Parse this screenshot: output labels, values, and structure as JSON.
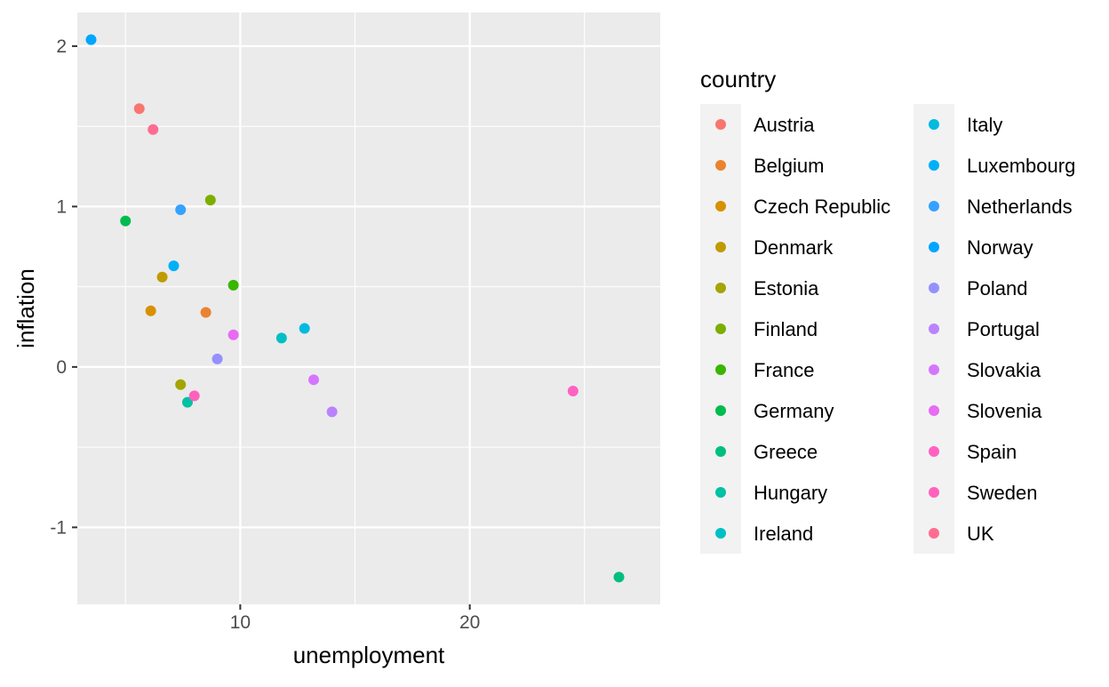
{
  "chart_data": {
    "type": "scatter",
    "title": "",
    "xlabel": "unemployment",
    "ylabel": "inflation",
    "xlim": [
      2.9,
      28.3
    ],
    "ylim": [
      -1.48,
      2.21
    ],
    "x_ticks": [
      10,
      20
    ],
    "y_ticks": [
      -1,
      0,
      1,
      2
    ],
    "x_tick_labels": [
      "10",
      "20"
    ],
    "y_tick_labels": [
      "-1",
      "0",
      "1",
      "2"
    ],
    "grid": true,
    "legend": {
      "title": "country",
      "placement": "right",
      "columns": 2
    },
    "series": [
      {
        "name": "Austria",
        "color": "#F8766D",
        "points": [
          [
            5.6,
            1.61
          ]
        ]
      },
      {
        "name": "Belgium",
        "color": "#EA8331",
        "points": [
          [
            8.5,
            0.34
          ]
        ]
      },
      {
        "name": "Czech Republic",
        "color": "#D89000",
        "points": [
          [
            6.1,
            0.35
          ]
        ]
      },
      {
        "name": "Denmark",
        "color": "#C09B00",
        "points": [
          [
            6.6,
            0.56
          ]
        ]
      },
      {
        "name": "Estonia",
        "color": "#A3A500",
        "points": [
          [
            7.4,
            -0.11
          ]
        ]
      },
      {
        "name": "Finland",
        "color": "#7CAE00",
        "points": [
          [
            8.7,
            1.04
          ]
        ]
      },
      {
        "name": "France",
        "color": "#39B600",
        "points": [
          [
            9.7,
            0.51
          ]
        ]
      },
      {
        "name": "Germany",
        "color": "#00BB4E",
        "points": [
          [
            5.0,
            0.91
          ]
        ]
      },
      {
        "name": "Greece",
        "color": "#00BF7D",
        "points": [
          [
            26.5,
            -1.31
          ]
        ]
      },
      {
        "name": "Hungary",
        "color": "#00C1A3",
        "points": [
          [
            7.7,
            -0.22
          ]
        ]
      },
      {
        "name": "Ireland",
        "color": "#00BFC4",
        "points": [
          [
            11.8,
            0.18
          ]
        ]
      },
      {
        "name": "Italy",
        "color": "#00BAE0",
        "points": [
          [
            12.8,
            0.24
          ]
        ]
      },
      {
        "name": "Luxembourg",
        "color": "#00B0F6",
        "points": [
          [
            7.1,
            0.63
          ]
        ]
      },
      {
        "name": "Netherlands",
        "color": "#35A2FF",
        "points": [
          [
            7.4,
            0.98
          ]
        ]
      },
      {
        "name": "Norway",
        "color": "#00A5FF",
        "points": [
          [
            3.5,
            2.04
          ]
        ]
      },
      {
        "name": "Poland",
        "color": "#9590FF",
        "points": [
          [
            9.0,
            0.05
          ]
        ]
      },
      {
        "name": "Portugal",
        "color": "#B983FF",
        "points": [
          [
            14.0,
            -0.28
          ]
        ]
      },
      {
        "name": "Slovakia",
        "color": "#D575FE",
        "points": [
          [
            13.2,
            -0.08
          ]
        ]
      },
      {
        "name": "Slovenia",
        "color": "#E76BF3",
        "points": [
          [
            9.7,
            0.2
          ]
        ]
      },
      {
        "name": "Spain",
        "color": "#FF61C3",
        "points": [
          [
            24.5,
            -0.15
          ]
        ]
      },
      {
        "name": "Sweden",
        "color": "#FF62BC",
        "points": [
          [
            8.0,
            -0.18
          ]
        ]
      },
      {
        "name": "UK",
        "color": "#FF6C91",
        "points": [
          [
            6.2,
            1.48
          ]
        ]
      }
    ]
  }
}
